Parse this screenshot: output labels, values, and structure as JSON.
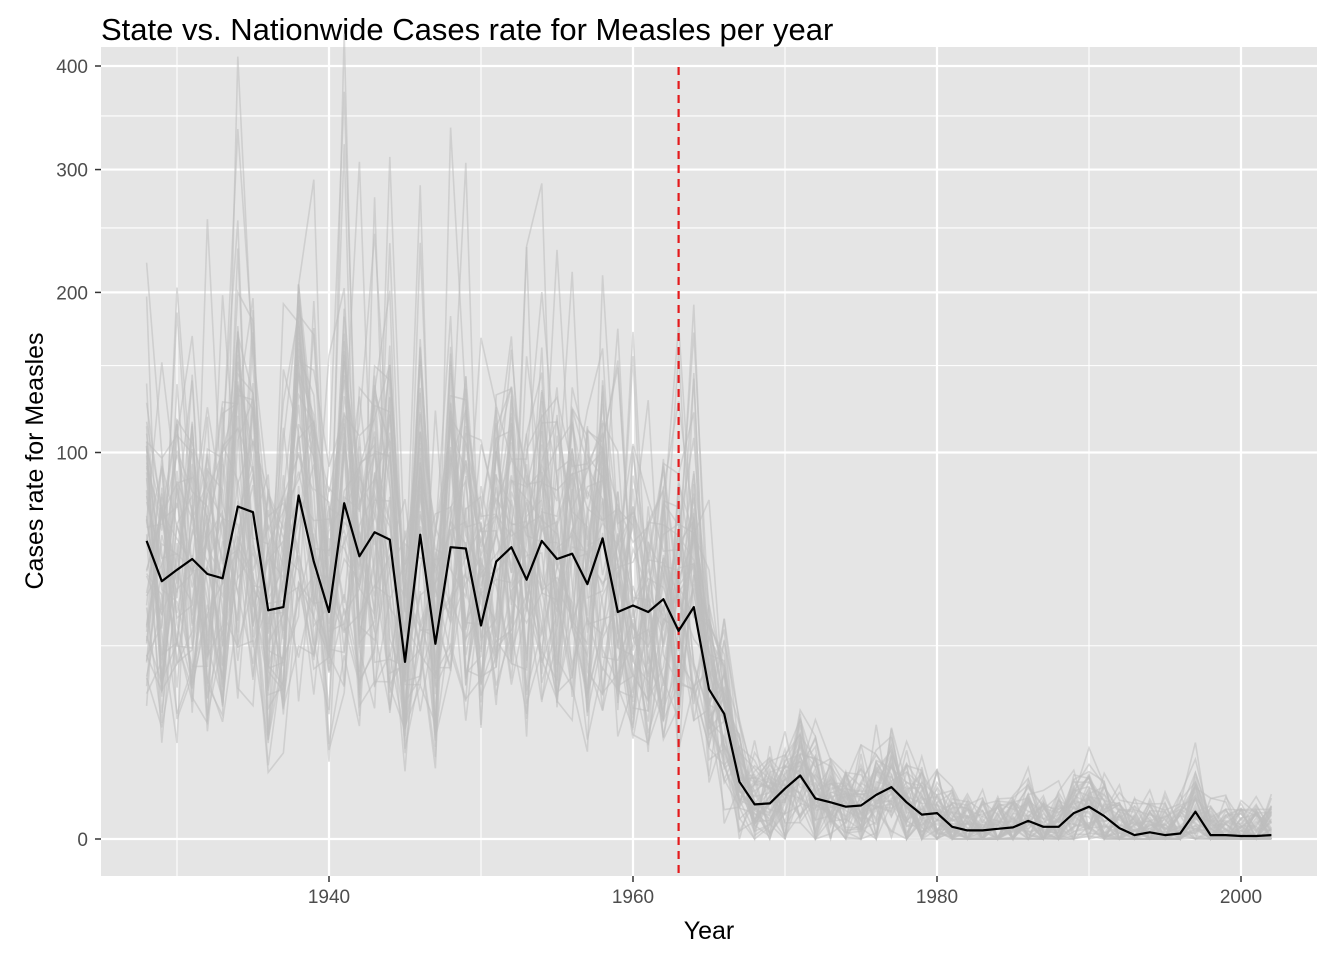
{
  "chart_data": {
    "type": "line",
    "title": "State vs. Nationwide Cases rate for Measles per year",
    "xlabel": "Year",
    "ylabel": "Cases rate for Measles",
    "xlim": [
      1925,
      2005
    ],
    "ylim": [
      0,
      400
    ],
    "y_scale": "sqrt",
    "x_ticks": [
      1940,
      1960,
      1980,
      2000
    ],
    "y_ticks": [
      0,
      100,
      200,
      300,
      400
    ],
    "grid": true,
    "vline": {
      "x": 1963,
      "color": "#e41a1c",
      "style": "dashed"
    },
    "colors": {
      "panel": "#e5e5e5",
      "grid": "#ffffff",
      "state_lines": "#bdbdbd",
      "national_line": "#000000"
    },
    "series": [
      {
        "x": [
          1928,
          1929,
          1930,
          1931,
          1932,
          1933,
          1934,
          1935,
          1936,
          1937,
          1938,
          1939,
          1940,
          1941,
          1942,
          1943,
          1944,
          1945,
          1946,
          1947,
          1948,
          1949,
          1950,
          1951,
          1952,
          1953,
          1954,
          1955,
          1956,
          1957,
          1958,
          1959,
          1960,
          1961,
          1962,
          1963,
          1964,
          1965,
          1966,
          1967,
          1968,
          1969,
          1970,
          1971,
          1972,
          1973,
          1974,
          1975,
          1976,
          1977,
          1978,
          1979,
          1980,
          1981,
          1982,
          1983,
          1984,
          1985,
          1986,
          1987,
          1988,
          1989,
          1990,
          1991,
          1992,
          1993,
          1994,
          1995,
          1996,
          1997,
          1998,
          1999,
          2000,
          2001,
          2002
        ],
        "values": [
          59.5,
          44.5,
          48.5,
          52.5,
          47,
          45.5,
          74,
          71.5,
          35,
          36,
          79,
          51.5,
          34.5,
          75.5,
          53.5,
          63,
          60,
          21,
          62,
          25.5,
          57,
          56.5,
          30.5,
          51.5,
          57,
          45,
          59.5,
          52.5,
          54.5,
          43.5,
          60.5,
          34.5,
          36.5,
          34.5,
          38.5,
          29,
          36,
          15,
          10.5,
          2.2,
          0.8,
          0.85,
          1.7,
          2.7,
          1.1,
          0.9,
          0.7,
          0.75,
          1.3,
          1.8,
          0.9,
          0.4,
          0.45,
          0.1,
          0.05,
          0.05,
          0.07,
          0.09,
          0.22,
          0.1,
          0.1,
          0.45,
          0.7,
          0.35,
          0.08,
          0.01,
          0.03,
          0.01,
          0.02,
          0.5,
          0.01,
          0.01,
          0.006,
          0.006,
          0.01
        ]
      }
    ]
  }
}
